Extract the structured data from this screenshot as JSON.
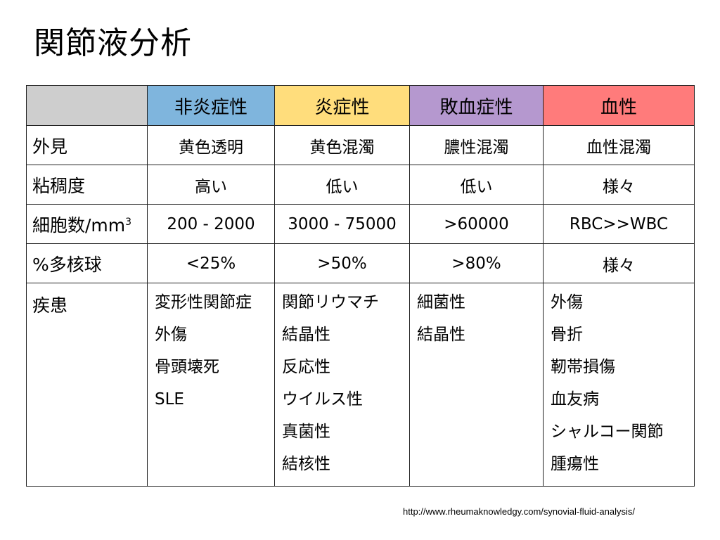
{
  "title": "関節液分析",
  "colors": {
    "corner": "#cecece",
    "non_inflammatory": "#7fb5dd",
    "inflammatory": "#ffdd7c",
    "septic": "#b598cf",
    "hemorrhagic": "#ff7b7b"
  },
  "columns": [
    {
      "key": "non_inflammatory",
      "label": "非炎症性"
    },
    {
      "key": "inflammatory",
      "label": "炎症性"
    },
    {
      "key": "septic",
      "label": "敗血症性"
    },
    {
      "key": "hemorrhagic",
      "label": "血性"
    }
  ],
  "rows": [
    {
      "label": "外見",
      "values": [
        "黄色透明",
        "黄色混濁",
        "膿性混濁",
        "血性混濁"
      ]
    },
    {
      "label": "粘稠度",
      "values": [
        "高い",
        "低い",
        "低い",
        "様々"
      ]
    },
    {
      "label": "細胞数/mm",
      "label_sup": "3",
      "values": [
        "200 - 2000",
        "3000 - 75000",
        ">60000",
        "RBC>>WBC"
      ]
    },
    {
      "label": "%多核球",
      "values": [
        "<25%",
        ">50%",
        ">80%",
        "様々"
      ]
    }
  ],
  "diseases": {
    "label": "疾患",
    "values": [
      [
        "変形性関節症",
        "外傷",
        "骨頭壊死",
        "SLE"
      ],
      [
        "関節リウマチ",
        "結晶性",
        "反応性",
        "ウイルス性",
        "真菌性",
        "結核性"
      ],
      [
        "細菌性",
        "結晶性"
      ],
      [
        "外傷",
        "骨折",
        "靭帯損傷",
        "血友病",
        "シャルコー関節",
        "腫瘍性"
      ]
    ]
  },
  "source": "http://www.rheumaknowledgy.com/synovial-fluid-analysis/"
}
